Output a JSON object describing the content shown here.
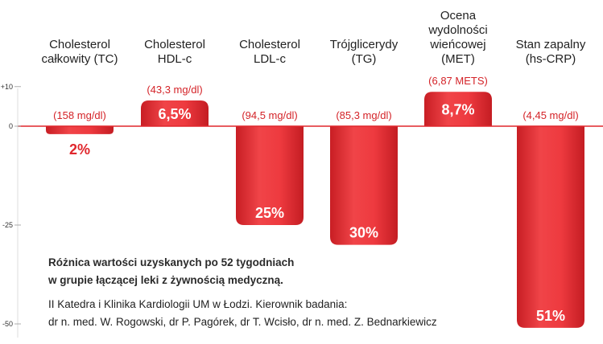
{
  "chart_data": {
    "type": "bar",
    "categories": [
      [
        "Cholesterol",
        "całkowity (TC)"
      ],
      [
        "Cholesterol",
        "HDL-c"
      ],
      [
        "Cholesterol",
        "LDL-c"
      ],
      [
        "Trójglicerydy",
        "(TG)"
      ],
      [
        "Ocena",
        "wydolności",
        "wieńcowej",
        "(MET)"
      ],
      [
        "Stan zapalny",
        "(hs-CRP)"
      ]
    ],
    "values": [
      -2,
      6.5,
      -25,
      -30,
      8.7,
      -51
    ],
    "value_labels": [
      "2%",
      "6,5%",
      "25%",
      "30%",
      "8,7%",
      "51%"
    ],
    "baseline_labels": [
      "(158 mg/dl)",
      "(43,3 mg/dl)",
      "(94,5 mg/dl)",
      "(85,3 mg/dl)",
      "(6,87 METS)",
      "(4,45 mg/dl)"
    ],
    "yticks": [
      10,
      0,
      -25,
      -50
    ],
    "ytick_labels": [
      "+10",
      "0",
      "-25",
      "-50"
    ],
    "ylim": [
      -52,
      14
    ],
    "colors": {
      "bar": "#e0262c",
      "bar_light": "#f25a5e",
      "label": "#d42328",
      "axis": "#e0262c",
      "text": "#222222"
    }
  },
  "caption": {
    "line1": "Różnica wartości uzyskanych po 52 tygodniach",
    "line2": "w grupie łączącej leki z żywnością medyczną.",
    "line3": "II Katedra i Klinika Kardiologii UM w Łodzi. Kierownik badania:",
    "line4": "dr n. med. W. Rogowski, dr P. Pagórek, dr T. Wcisło, dr n. med. Z. Bednarkiewicz"
  }
}
